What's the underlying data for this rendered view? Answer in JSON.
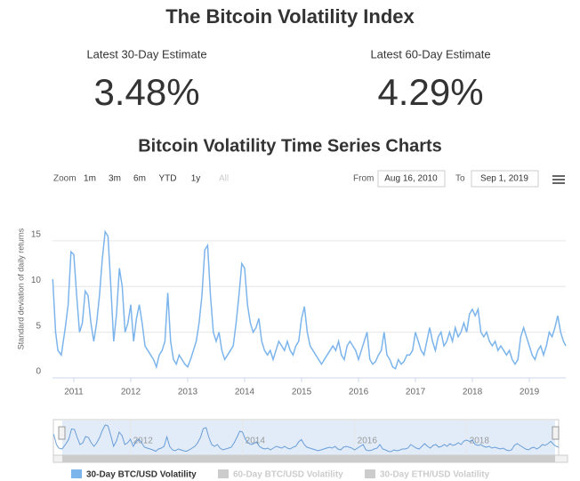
{
  "header": {
    "title": "The Bitcoin Volatility Index",
    "stats": [
      {
        "label": "Latest 30-Day Estimate",
        "value": "3.48%"
      },
      {
        "label": "Latest 60-Day Estimate",
        "value": "4.29%"
      }
    ]
  },
  "controls": {
    "zoom_label": "Zoom",
    "zoom_buttons": [
      "1m",
      "3m",
      "6m",
      "YTD",
      "1y",
      "All"
    ],
    "from_label": "From",
    "from": "Aug 16, 2010",
    "to_label": "To",
    "to": "Sep 1, 2019"
  },
  "chart_data": {
    "type": "line",
    "title": "Bitcoin Volatility Time Series Charts",
    "y_label": "Standard deviation of daily returns",
    "xlim": [
      2010.625,
      2019.64
    ],
    "xticks": [
      2011,
      2012,
      2013,
      2014,
      2015,
      2016,
      2017,
      2018,
      2019
    ],
    "ylim": [
      0,
      18
    ],
    "yticks": [
      0,
      5,
      10,
      15
    ],
    "grid": true,
    "x": [
      2010.63,
      2010.68,
      2010.72,
      2010.78,
      2010.85,
      2010.9,
      2010.95,
      2011.0,
      2011.05,
      2011.1,
      2011.15,
      2011.2,
      2011.25,
      2011.3,
      2011.35,
      2011.4,
      2011.45,
      2011.5,
      2011.55,
      2011.6,
      2011.65,
      2011.7,
      2011.75,
      2011.8,
      2011.85,
      2011.9,
      2011.95,
      2012.0,
      2012.05,
      2012.1,
      2012.15,
      2012.2,
      2012.25,
      2012.3,
      2012.35,
      2012.4,
      2012.45,
      2012.5,
      2012.55,
      2012.6,
      2012.65,
      2012.7,
      2012.75,
      2012.8,
      2012.85,
      2012.9,
      2012.95,
      2013.0,
      2013.05,
      2013.1,
      2013.15,
      2013.2,
      2013.25,
      2013.3,
      2013.35,
      2013.4,
      2013.45,
      2013.5,
      2013.55,
      2013.6,
      2013.65,
      2013.7,
      2013.75,
      2013.8,
      2013.85,
      2013.9,
      2013.95,
      2014.0,
      2014.05,
      2014.1,
      2014.15,
      2014.2,
      2014.25,
      2014.3,
      2014.35,
      2014.4,
      2014.45,
      2014.5,
      2014.55,
      2014.6,
      2014.65,
      2014.7,
      2014.75,
      2014.8,
      2014.85,
      2014.9,
      2014.95,
      2015.0,
      2015.05,
      2015.1,
      2015.15,
      2015.2,
      2015.25,
      2015.3,
      2015.35,
      2015.4,
      2015.45,
      2015.5,
      2015.55,
      2015.6,
      2015.65,
      2015.7,
      2015.75,
      2015.8,
      2015.85,
      2015.9,
      2015.95,
      2016.0,
      2016.05,
      2016.1,
      2016.15,
      2016.2,
      2016.25,
      2016.3,
      2016.35,
      2016.4,
      2016.45,
      2016.5,
      2016.55,
      2016.6,
      2016.65,
      2016.7,
      2016.75,
      2016.8,
      2016.85,
      2016.9,
      2016.95,
      2017.0,
      2017.05,
      2017.1,
      2017.15,
      2017.2,
      2017.25,
      2017.3,
      2017.35,
      2017.4,
      2017.45,
      2017.5,
      2017.55,
      2017.6,
      2017.65,
      2017.7,
      2017.75,
      2017.8,
      2017.85,
      2017.9,
      2017.95,
      2018.0,
      2018.05,
      2018.1,
      2018.15,
      2018.2,
      2018.25,
      2018.3,
      2018.35,
      2018.4,
      2018.45,
      2018.5,
      2018.55,
      2018.6,
      2018.65,
      2018.7,
      2018.75,
      2018.8,
      2018.85,
      2018.9,
      2018.95,
      2019.0,
      2019.05,
      2019.1,
      2019.15,
      2019.2,
      2019.25,
      2019.3,
      2019.35,
      2019.4,
      2019.45,
      2019.5,
      2019.55,
      2019.6,
      2019.64
    ],
    "series": [
      {
        "name": "30-Day BTC/USD Volatility",
        "color": "#7cb5ec",
        "visible": true,
        "values": [
          10.8,
          5,
          3,
          2.5,
          5.5,
          8,
          13.8,
          13.5,
          9,
          5,
          6,
          9.5,
          9,
          6,
          4,
          6,
          9,
          13,
          16,
          15.5,
          10,
          4,
          7,
          12,
          10,
          5,
          6,
          8,
          4,
          6.5,
          8,
          6,
          3.5,
          3,
          2.5,
          2,
          1.2,
          2.5,
          3,
          4,
          9.3,
          4,
          2,
          1.5,
          2.5,
          2,
          1.5,
          1.2,
          2,
          3,
          4,
          6,
          9,
          14,
          14.5,
          9,
          5,
          4,
          5,
          3,
          2,
          2.5,
          3,
          3.5,
          6,
          9,
          12.5,
          12,
          8,
          6,
          5,
          5.5,
          6.5,
          4,
          3,
          2.5,
          3,
          2,
          3,
          4,
          3.5,
          3,
          4,
          3,
          2.5,
          3.5,
          4,
          6.5,
          7.8,
          5,
          3.5,
          3,
          2.5,
          2,
          1.5,
          2,
          2.5,
          3,
          3.5,
          3,
          4,
          2.5,
          2,
          3.5,
          4,
          3.5,
          3,
          2,
          3,
          4,
          5,
          2,
          1.5,
          1.8,
          2.5,
          3,
          5,
          2.5,
          2,
          1.2,
          1,
          2,
          1.5,
          1.8,
          2.5,
          2.5,
          3,
          5,
          4,
          3,
          2.5,
          4,
          5.5,
          4,
          3,
          4.5,
          5,
          3.5,
          4,
          5,
          4,
          5.5,
          4.5,
          5,
          6,
          5,
          7,
          7.5,
          6.8,
          7.5,
          5,
          4.5,
          5,
          4,
          3.5,
          4,
          3,
          3.5,
          3,
          2.5,
          3,
          2,
          1.5,
          2,
          4.5,
          5.5,
          4.5,
          3.5,
          2.5,
          2,
          3,
          3.5,
          2.5,
          3.5,
          5,
          4.5,
          5.5,
          6.8,
          5,
          4,
          3.5
        ]
      },
      {
        "name": "60-Day BTC/USD Volatility",
        "color": "#cccccc",
        "visible": false
      },
      {
        "name": "30-Day ETH/USD Volatility",
        "color": "#cccccc",
        "visible": false
      }
    ],
    "navigator": {
      "xticks": [
        2012,
        2014,
        2016,
        2018
      ]
    }
  }
}
